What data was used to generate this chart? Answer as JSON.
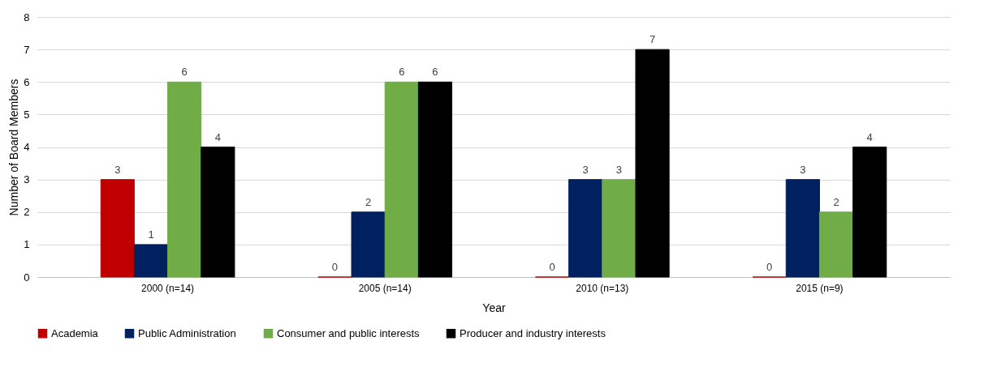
{
  "chart_data": {
    "type": "bar",
    "xlabel": "Year",
    "ylabel": "Number  of Board Members",
    "categories": [
      "2000 (n=14)",
      "2005 (n=14)",
      "2010 (n=13)",
      "2015 (n=9)"
    ],
    "series": [
      {
        "name": "Academia",
        "color": "#c00000",
        "values": [
          3,
          0,
          0,
          0
        ]
      },
      {
        "name": "Public Administration",
        "color": "#002060",
        "values": [
          1,
          2,
          3,
          3
        ]
      },
      {
        "name": "Consumer and public interests",
        "color": "#70ad47",
        "values": [
          6,
          6,
          3,
          2
        ]
      },
      {
        "name": "Producer and industry interests",
        "color": "#000000",
        "values": [
          4,
          6,
          7,
          4
        ]
      }
    ],
    "ylim": [
      0,
      8
    ],
    "yticks": [
      0,
      1,
      2,
      3,
      4,
      5,
      6,
      7,
      8
    ],
    "grid": "y",
    "legend": "bottom",
    "data_labels": true
  }
}
